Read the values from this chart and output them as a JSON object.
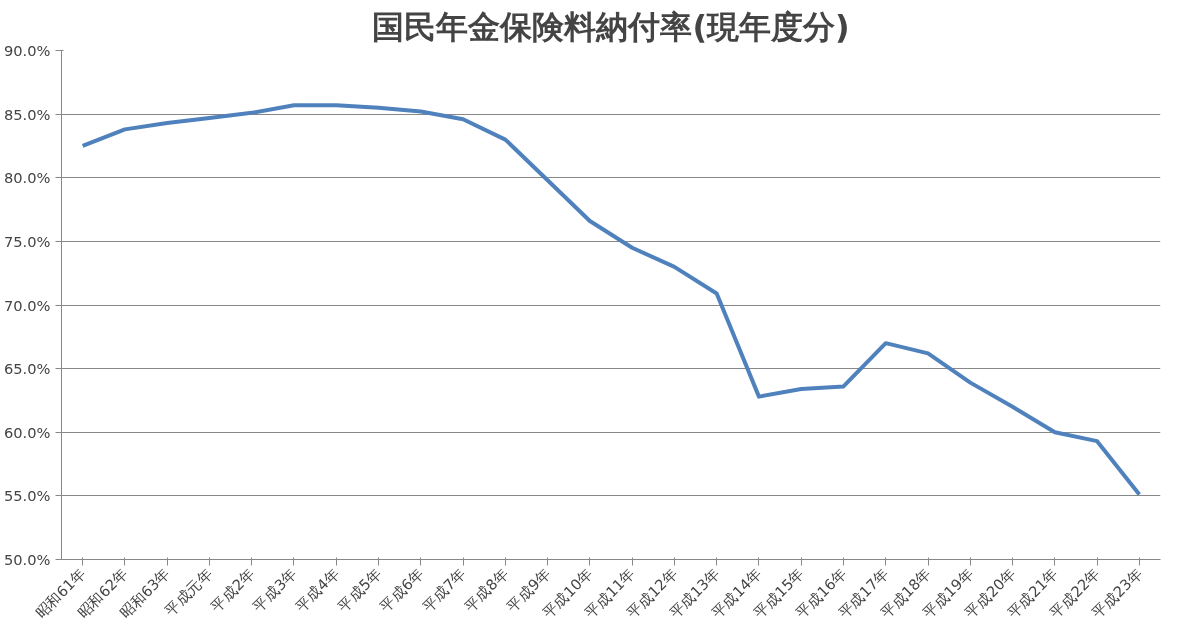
{
  "chart_data": {
    "type": "line",
    "title": "国民年金保険料納付率(現年度分)",
    "categories": [
      "昭和61年",
      "昭和62年",
      "昭和63年",
      "平成元年",
      "平成2年",
      "平成3年",
      "平成4年",
      "平成5年",
      "平成6年",
      "平成7年",
      "平成8年",
      "平成9年",
      "平成10年",
      "平成11年",
      "平成12年",
      "平成13年",
      "平成14年",
      "平成15年",
      "平成16年",
      "平成17年",
      "平成18年",
      "平成19年",
      "平成20年",
      "平成21年",
      "平成22年",
      "平成23年"
    ],
    "series": [
      {
        "color": "#4f81bd",
        "values": [
          82.5,
          83.8,
          84.3,
          84.7,
          85.1,
          85.7,
          85.7,
          85.5,
          85.2,
          84.6,
          83.0,
          79.8,
          76.6,
          74.5,
          73.0,
          70.9,
          62.8,
          63.4,
          63.6,
          67.0,
          66.2,
          63.9,
          62.0,
          60.0,
          59.3,
          55.1
        ]
      }
    ],
    "ylim": [
      50,
      90
    ],
    "yticks": [
      {
        "value": 50,
        "label": "50.0%"
      },
      {
        "value": 55,
        "label": "55.0%"
      },
      {
        "value": 60,
        "label": "60.0%"
      },
      {
        "value": 65,
        "label": "65.0%"
      },
      {
        "value": 70,
        "label": "70.0%"
      },
      {
        "value": 75,
        "label": "75.0%"
      },
      {
        "value": 80,
        "label": "80.0%"
      },
      {
        "value": 85,
        "label": "85.0%"
      },
      {
        "value": 90,
        "label": "90.0%"
      }
    ],
    "grid": "y",
    "marker": "none",
    "line_style": "solid"
  }
}
